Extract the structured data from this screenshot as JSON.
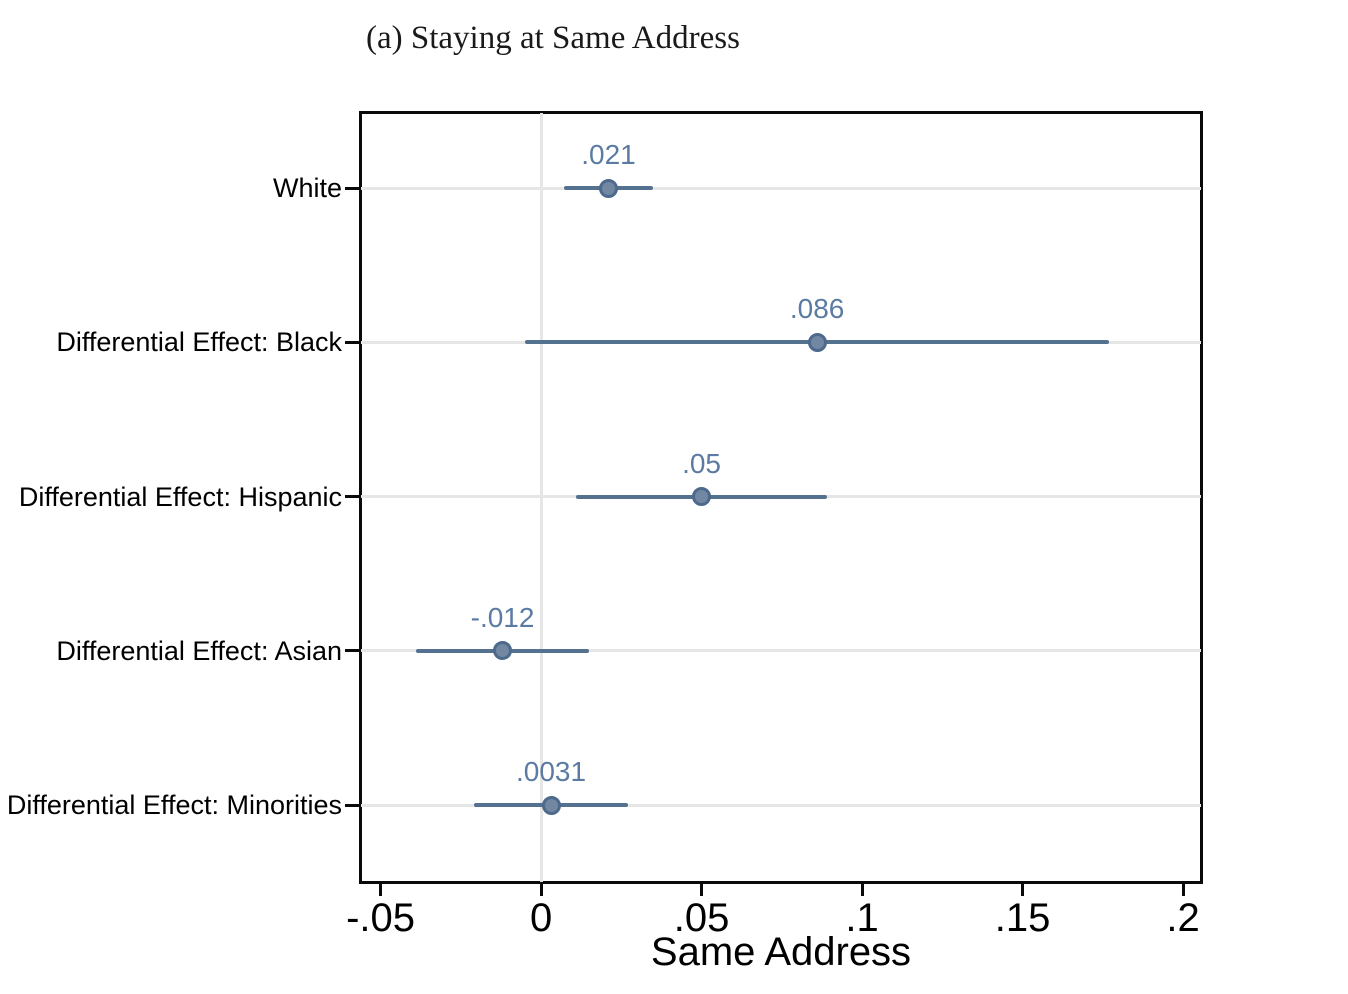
{
  "title": "(a) Staying at Same Address",
  "colors": {
    "ci_line": "#54718f",
    "marker_fill": "#7187a2",
    "marker_stroke": "#4d6a8c",
    "value_label": "#5b7ba3",
    "gridline": "#e6e6e6",
    "axis": "#0a0a0a"
  },
  "chart_data": {
    "type": "scatter",
    "subtype": "coefficient-plot-with-confidence-intervals",
    "title": "(a) Staying at Same Address",
    "xlabel": "Same Address",
    "ylabel": "",
    "categories": [
      "White",
      "Differential Effect: Black",
      "Differential Effect: Hispanic",
      "Differential Effect: Asian",
      "Differential Effect: Minorities"
    ],
    "series": [
      {
        "name": "Point estimate",
        "values": [
          0.021,
          0.086,
          0.05,
          -0.012,
          0.0031
        ],
        "value_labels": [
          ".021",
          ".086",
          ".05",
          "-.012",
          ".0031"
        ],
        "ci_low": [
          0.007,
          -0.005,
          0.011,
          -0.039,
          -0.021
        ],
        "ci_high": [
          0.035,
          0.177,
          0.089,
          0.015,
          0.027
        ]
      }
    ],
    "x_ticks": [
      -0.05,
      0,
      0.05,
      0.1,
      0.15,
      0.2
    ],
    "x_tick_labels": [
      "-.05",
      "0",
      ".05",
      ".1",
      ".15",
      ".2"
    ],
    "xlim": [
      -0.0561,
      0.2056
    ],
    "grid": "light horizontal gridline per category plus vertical gridline at 0",
    "legend": "none"
  }
}
